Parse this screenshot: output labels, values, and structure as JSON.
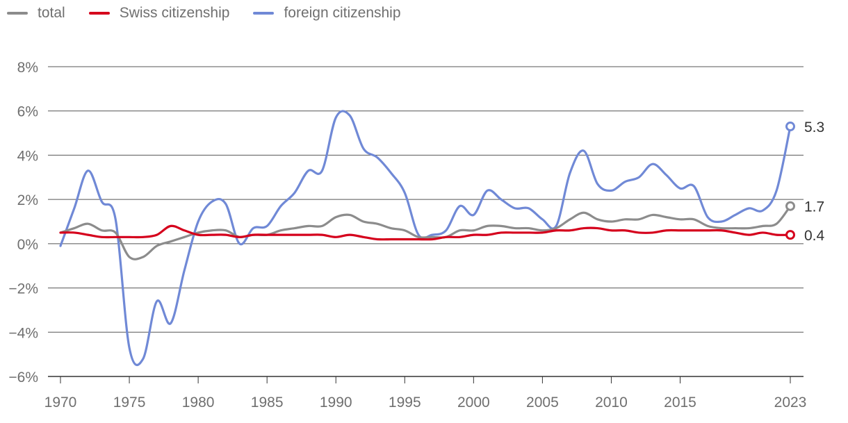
{
  "legend": [
    {
      "label": "total",
      "color": "#8c8c8c"
    },
    {
      "label": "Swiss citizenship",
      "color": "#d5001c"
    },
    {
      "label": "foreign citizenship",
      "color": "#7089d6"
    }
  ],
  "chart_data": {
    "type": "line",
    "title": "",
    "xlabel": "",
    "ylabel": "",
    "x_ticks": [
      "1970",
      "1975",
      "1980",
      "1985",
      "1990",
      "1995",
      "2000",
      "2005",
      "2010",
      "2015",
      "2023"
    ],
    "y_ticks": [
      "8%",
      "6%",
      "4%",
      "2%",
      "0%",
      "−2%",
      "−4%",
      "−6%"
    ],
    "ylim": [
      -6,
      8
    ],
    "xlim": [
      1970,
      2023
    ],
    "grid": "horizontal",
    "legend_position": "top-left",
    "x": [
      1970,
      1971,
      1972,
      1973,
      1974,
      1975,
      1976,
      1977,
      1978,
      1979,
      1980,
      1981,
      1982,
      1983,
      1984,
      1985,
      1986,
      1987,
      1988,
      1989,
      1990,
      1991,
      1992,
      1993,
      1994,
      1995,
      1996,
      1997,
      1998,
      1999,
      2000,
      2001,
      2002,
      2003,
      2004,
      2005,
      2006,
      2007,
      2008,
      2009,
      2010,
      2011,
      2012,
      2013,
      2014,
      2015,
      2016,
      2017,
      2018,
      2019,
      2020,
      2021,
      2022,
      2023
    ],
    "series": [
      {
        "name": "total",
        "color": "#8c8c8c",
        "values": [
          0.5,
          0.7,
          0.9,
          0.6,
          0.5,
          -0.6,
          -0.6,
          -0.1,
          0.1,
          0.3,
          0.5,
          0.6,
          0.6,
          0.3,
          0.4,
          0.4,
          0.6,
          0.7,
          0.8,
          0.8,
          1.2,
          1.3,
          1.0,
          0.9,
          0.7,
          0.6,
          0.3,
          0.3,
          0.3,
          0.6,
          0.6,
          0.8,
          0.8,
          0.7,
          0.7,
          0.6,
          0.7,
          1.1,
          1.4,
          1.1,
          1.0,
          1.1,
          1.1,
          1.3,
          1.2,
          1.1,
          1.1,
          0.8,
          0.7,
          0.7,
          0.7,
          0.8,
          0.9,
          1.7
        ],
        "end_label": "1.7"
      },
      {
        "name": "Swiss citizenship",
        "color": "#d5001c",
        "values": [
          0.5,
          0.5,
          0.4,
          0.3,
          0.3,
          0.3,
          0.3,
          0.4,
          0.8,
          0.6,
          0.4,
          0.4,
          0.4,
          0.3,
          0.4,
          0.4,
          0.4,
          0.4,
          0.4,
          0.4,
          0.3,
          0.4,
          0.3,
          0.2,
          0.2,
          0.2,
          0.2,
          0.2,
          0.3,
          0.3,
          0.4,
          0.4,
          0.5,
          0.5,
          0.5,
          0.5,
          0.6,
          0.6,
          0.7,
          0.7,
          0.6,
          0.6,
          0.5,
          0.5,
          0.6,
          0.6,
          0.6,
          0.6,
          0.6,
          0.5,
          0.4,
          0.5,
          0.4,
          0.4
        ],
        "end_label": "0.4"
      },
      {
        "name": "foreign citizenship",
        "color": "#7089d6",
        "values": [
          -0.1,
          1.6,
          3.3,
          1.9,
          1.1,
          -4.7,
          -5.2,
          -2.6,
          -3.6,
          -1.2,
          1.0,
          1.9,
          1.8,
          0.0,
          0.7,
          0.8,
          1.7,
          2.3,
          3.3,
          3.3,
          5.7,
          5.8,
          4.3,
          3.9,
          3.2,
          2.3,
          0.4,
          0.4,
          0.6,
          1.7,
          1.3,
          2.4,
          2.0,
          1.6,
          1.6,
          1.1,
          0.8,
          3.2,
          4.2,
          2.7,
          2.4,
          2.8,
          3.0,
          3.6,
          3.1,
          2.5,
          2.6,
          1.2,
          1.0,
          1.3,
          1.6,
          1.5,
          2.4,
          5.3
        ],
        "end_label": "5.3"
      }
    ]
  }
}
